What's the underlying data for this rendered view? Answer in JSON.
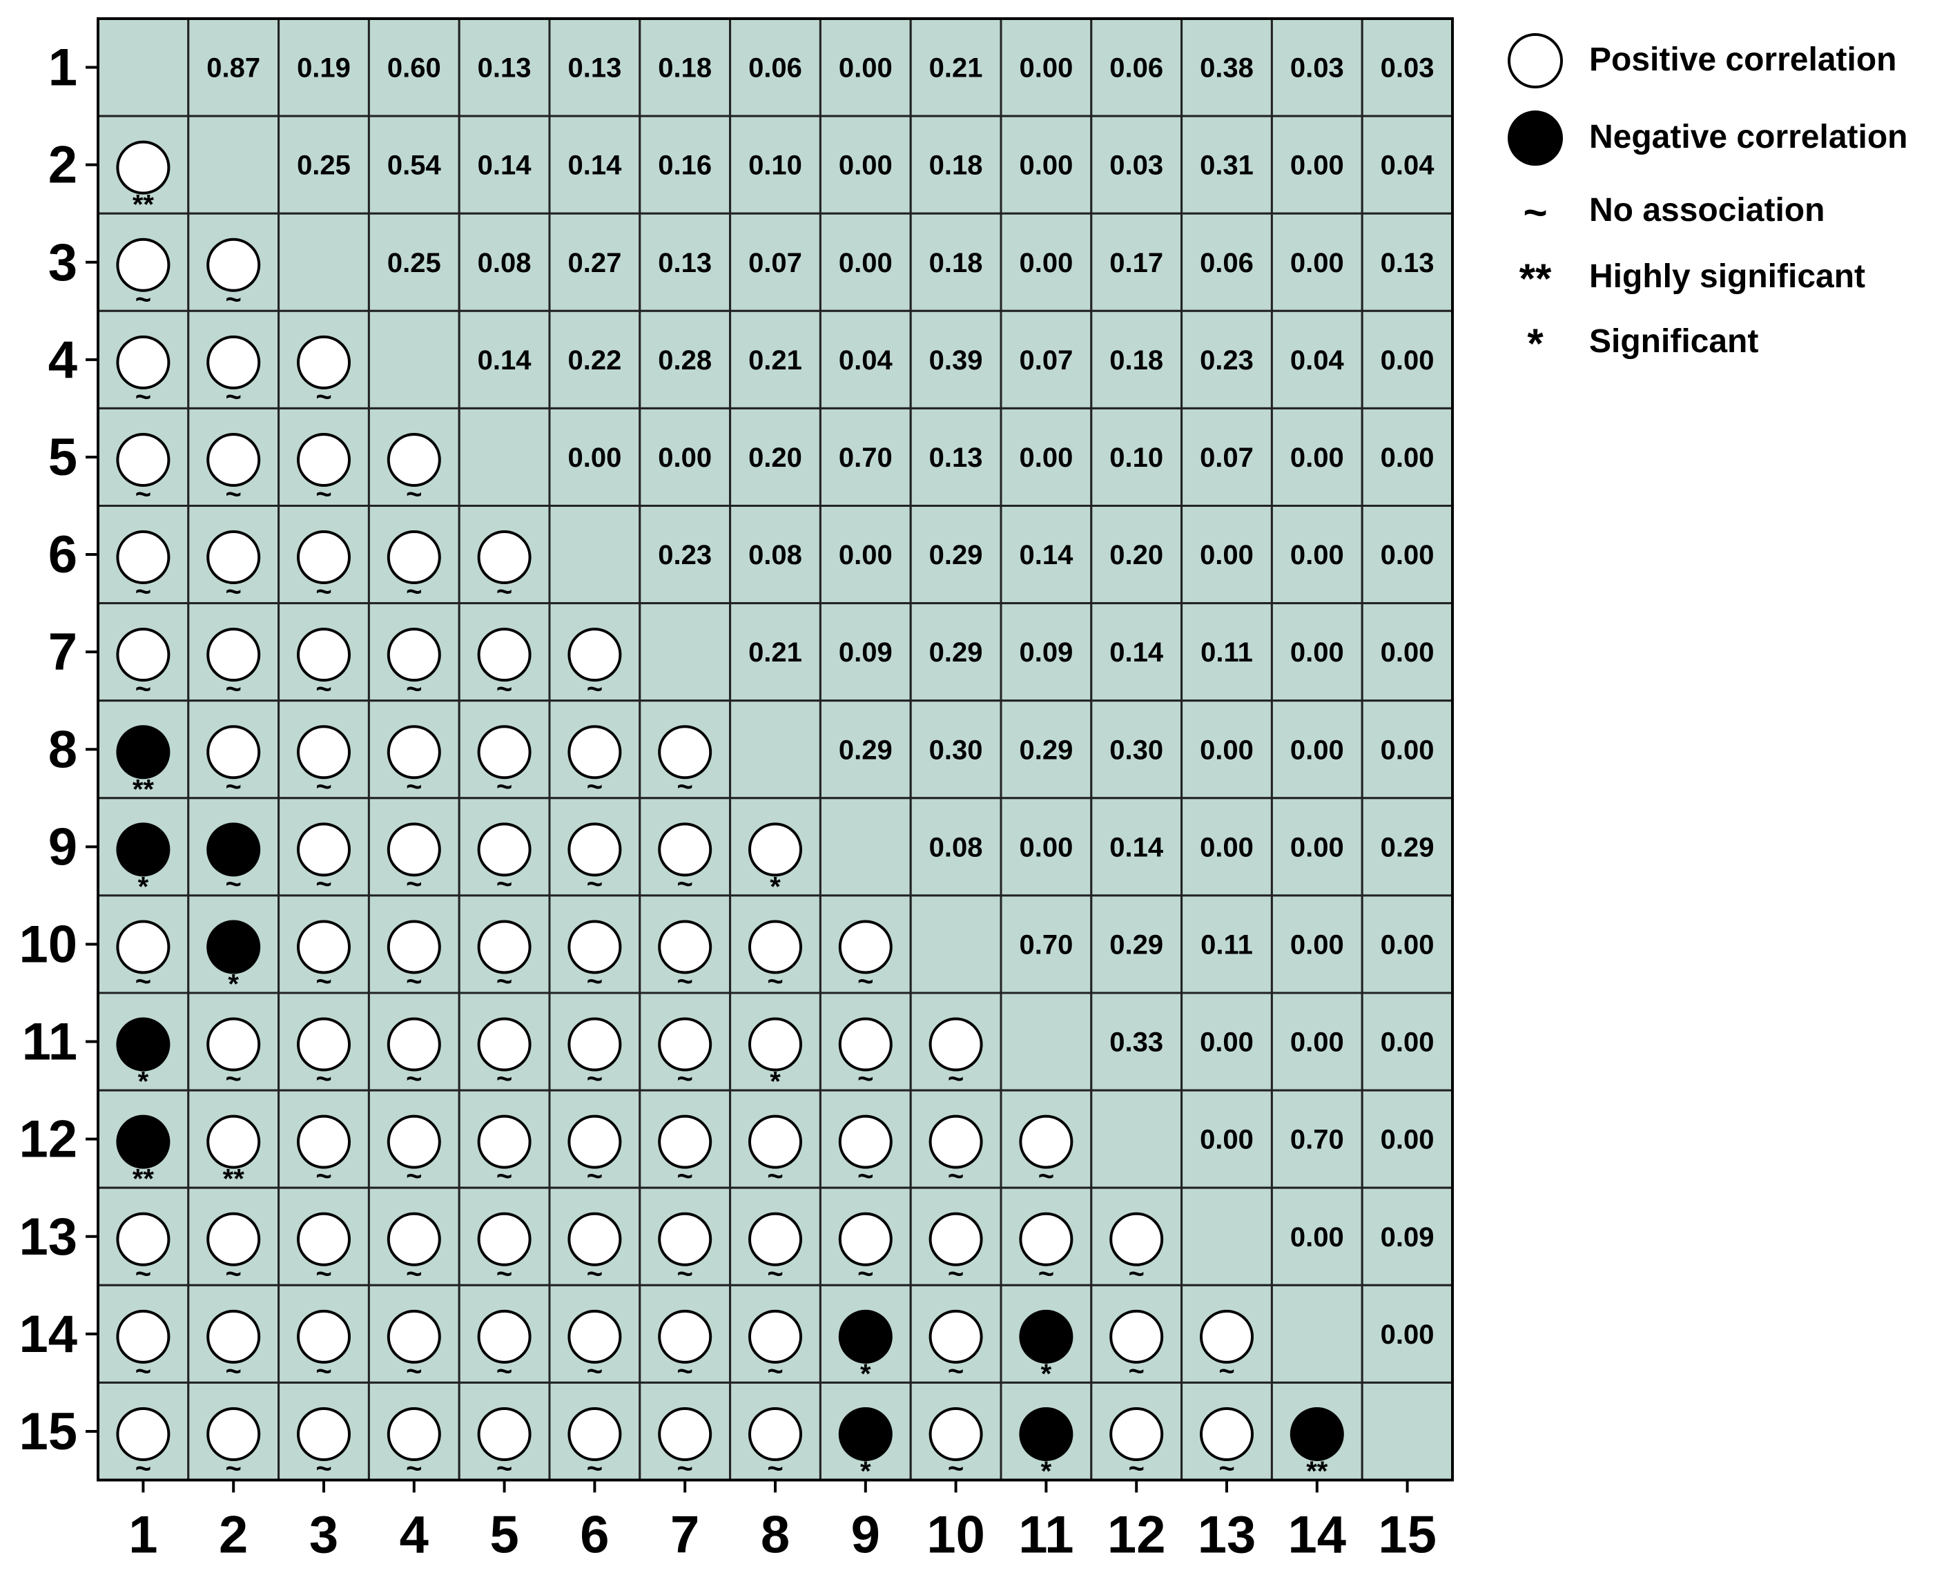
{
  "chart_data": {
    "type": "heatmap",
    "title": "",
    "xlabel": "",
    "ylabel": "",
    "row_labels": [
      "1",
      "2",
      "3",
      "4",
      "5",
      "6",
      "7",
      "8",
      "9",
      "10",
      "11",
      "12",
      "13",
      "14",
      "15"
    ],
    "col_labels": [
      "1",
      "2",
      "3",
      "4",
      "5",
      "6",
      "7",
      "8",
      "9",
      "10",
      "11",
      "12",
      "13",
      "14",
      "15"
    ],
    "upper_values": [
      [
        "0.87",
        "0.19",
        "0.60",
        "0.13",
        "0.13",
        "0.18",
        "0.06",
        "0.00",
        "0.21",
        "0.00",
        "0.06",
        "0.38",
        "0.03",
        "0.03"
      ],
      [
        "0.25",
        "0.54",
        "0.14",
        "0.14",
        "0.16",
        "0.10",
        "0.00",
        "0.18",
        "0.00",
        "0.03",
        "0.31",
        "0.00",
        "0.04"
      ],
      [
        "0.25",
        "0.08",
        "0.27",
        "0.13",
        "0.07",
        "0.00",
        "0.18",
        "0.00",
        "0.17",
        "0.06",
        "0.00",
        "0.13"
      ],
      [
        "0.14",
        "0.22",
        "0.28",
        "0.21",
        "0.04",
        "0.39",
        "0.07",
        "0.18",
        "0.23",
        "0.04",
        "0.00"
      ],
      [
        "0.00",
        "0.00",
        "0.20",
        "0.70",
        "0.13",
        "0.00",
        "0.10",
        "0.07",
        "0.00",
        "0.00"
      ],
      [
        "0.23",
        "0.08",
        "0.00",
        "0.29",
        "0.14",
        "0.20",
        "0.00",
        "0.00",
        "0.00"
      ],
      [
        "0.21",
        "0.09",
        "0.29",
        "0.09",
        "0.14",
        "0.11",
        "0.00",
        "0.00"
      ],
      [
        "0.29",
        "0.30",
        "0.29",
        "0.30",
        "0.00",
        "0.00",
        "0.00"
      ],
      [
        "0.08",
        "0.00",
        "0.14",
        "0.00",
        "0.00",
        "0.29"
      ],
      [
        "0.70",
        "0.29",
        "0.11",
        "0.00",
        "0.00"
      ],
      [
        "0.33",
        "0.00",
        "0.00",
        "0.00"
      ],
      [
        "0.00",
        "0.70",
        "0.00"
      ],
      [
        "0.00",
        "0.09"
      ],
      [
        "0.00"
      ],
      []
    ],
    "lower_symbols": [
      [],
      [
        {
          "sign": "positive",
          "mark": "**"
        }
      ],
      [
        {
          "sign": "positive",
          "mark": "~"
        },
        {
          "sign": "positive",
          "mark": "~"
        }
      ],
      [
        {
          "sign": "positive",
          "mark": "~"
        },
        {
          "sign": "positive",
          "mark": "~"
        },
        {
          "sign": "positive",
          "mark": "~"
        }
      ],
      [
        {
          "sign": "positive",
          "mark": "~"
        },
        {
          "sign": "positive",
          "mark": "~"
        },
        {
          "sign": "positive",
          "mark": "~"
        },
        {
          "sign": "positive",
          "mark": "~"
        }
      ],
      [
        {
          "sign": "positive",
          "mark": "~"
        },
        {
          "sign": "positive",
          "mark": "~"
        },
        {
          "sign": "positive",
          "mark": "~"
        },
        {
          "sign": "positive",
          "mark": "~"
        },
        {
          "sign": "positive",
          "mark": "~"
        }
      ],
      [
        {
          "sign": "positive",
          "mark": "~"
        },
        {
          "sign": "positive",
          "mark": "~"
        },
        {
          "sign": "positive",
          "mark": "~"
        },
        {
          "sign": "positive",
          "mark": "~"
        },
        {
          "sign": "positive",
          "mark": "~"
        },
        {
          "sign": "positive",
          "mark": "~"
        }
      ],
      [
        {
          "sign": "negative",
          "mark": "**"
        },
        {
          "sign": "positive",
          "mark": "~"
        },
        {
          "sign": "positive",
          "mark": "~"
        },
        {
          "sign": "positive",
          "mark": "~"
        },
        {
          "sign": "positive",
          "mark": "~"
        },
        {
          "sign": "positive",
          "mark": "~"
        },
        {
          "sign": "positive",
          "mark": "~"
        }
      ],
      [
        {
          "sign": "negative",
          "mark": "*"
        },
        {
          "sign": "negative",
          "mark": "~"
        },
        {
          "sign": "positive",
          "mark": "~"
        },
        {
          "sign": "positive",
          "mark": "~"
        },
        {
          "sign": "positive",
          "mark": "~"
        },
        {
          "sign": "positive",
          "mark": "~"
        },
        {
          "sign": "positive",
          "mark": "~"
        },
        {
          "sign": "positive",
          "mark": "*"
        }
      ],
      [
        {
          "sign": "positive",
          "mark": "~"
        },
        {
          "sign": "negative",
          "mark": "*"
        },
        {
          "sign": "positive",
          "mark": "~"
        },
        {
          "sign": "positive",
          "mark": "~"
        },
        {
          "sign": "positive",
          "mark": "~"
        },
        {
          "sign": "positive",
          "mark": "~"
        },
        {
          "sign": "positive",
          "mark": "~"
        },
        {
          "sign": "positive",
          "mark": "~"
        },
        {
          "sign": "positive",
          "mark": "~"
        }
      ],
      [
        {
          "sign": "negative",
          "mark": "*"
        },
        {
          "sign": "positive",
          "mark": "~"
        },
        {
          "sign": "positive",
          "mark": "~"
        },
        {
          "sign": "positive",
          "mark": "~"
        },
        {
          "sign": "positive",
          "mark": "~"
        },
        {
          "sign": "positive",
          "mark": "~"
        },
        {
          "sign": "positive",
          "mark": "~"
        },
        {
          "sign": "positive",
          "mark": "*"
        },
        {
          "sign": "positive",
          "mark": "~"
        },
        {
          "sign": "positive",
          "mark": "~"
        }
      ],
      [
        {
          "sign": "negative",
          "mark": "**"
        },
        {
          "sign": "positive",
          "mark": "**"
        },
        {
          "sign": "positive",
          "mark": "~"
        },
        {
          "sign": "positive",
          "mark": "~"
        },
        {
          "sign": "positive",
          "mark": "~"
        },
        {
          "sign": "positive",
          "mark": "~"
        },
        {
          "sign": "positive",
          "mark": "~"
        },
        {
          "sign": "positive",
          "mark": "~"
        },
        {
          "sign": "positive",
          "mark": "~"
        },
        {
          "sign": "positive",
          "mark": "~"
        },
        {
          "sign": "positive",
          "mark": "~"
        }
      ],
      [
        {
          "sign": "positive",
          "mark": "~"
        },
        {
          "sign": "positive",
          "mark": "~"
        },
        {
          "sign": "positive",
          "mark": "~"
        },
        {
          "sign": "positive",
          "mark": "~"
        },
        {
          "sign": "positive",
          "mark": "~"
        },
        {
          "sign": "positive",
          "mark": "~"
        },
        {
          "sign": "positive",
          "mark": "~"
        },
        {
          "sign": "positive",
          "mark": "~"
        },
        {
          "sign": "positive",
          "mark": "~"
        },
        {
          "sign": "positive",
          "mark": "~"
        },
        {
          "sign": "positive",
          "mark": "~"
        },
        {
          "sign": "positive",
          "mark": "~"
        }
      ],
      [
        {
          "sign": "positive",
          "mark": "~"
        },
        {
          "sign": "positive",
          "mark": "~"
        },
        {
          "sign": "positive",
          "mark": "~"
        },
        {
          "sign": "positive",
          "mark": "~"
        },
        {
          "sign": "positive",
          "mark": "~"
        },
        {
          "sign": "positive",
          "mark": "~"
        },
        {
          "sign": "positive",
          "mark": "~"
        },
        {
          "sign": "positive",
          "mark": "~"
        },
        {
          "sign": "negative",
          "mark": "*"
        },
        {
          "sign": "positive",
          "mark": "~"
        },
        {
          "sign": "negative",
          "mark": "*"
        },
        {
          "sign": "positive",
          "mark": "~"
        },
        {
          "sign": "positive",
          "mark": "~"
        }
      ],
      [
        {
          "sign": "positive",
          "mark": "~"
        },
        {
          "sign": "positive",
          "mark": "~"
        },
        {
          "sign": "positive",
          "mark": "~"
        },
        {
          "sign": "positive",
          "mark": "~"
        },
        {
          "sign": "positive",
          "mark": "~"
        },
        {
          "sign": "positive",
          "mark": "~"
        },
        {
          "sign": "positive",
          "mark": "~"
        },
        {
          "sign": "positive",
          "mark": "~"
        },
        {
          "sign": "negative",
          "mark": "*"
        },
        {
          "sign": "positive",
          "mark": "~"
        },
        {
          "sign": "negative",
          "mark": "*"
        },
        {
          "sign": "positive",
          "mark": "~"
        },
        {
          "sign": "positive",
          "mark": "~"
        },
        {
          "sign": "negative",
          "mark": "**"
        }
      ]
    ],
    "legend": {
      "placement": "top-right",
      "entries": [
        {
          "symbol": "open-circle",
          "label": "Positive correlation"
        },
        {
          "symbol": "filled-circle",
          "label": "Negative correlation"
        },
        {
          "symbol": "~",
          "label": "No association"
        },
        {
          "symbol": "**",
          "label": "Highly significant"
        },
        {
          "symbol": "*",
          "label": "Significant"
        }
      ]
    },
    "colors": {
      "cell_background": "#bfd8d2",
      "positive_fill": "#ffffff",
      "negative_fill": "#000000"
    },
    "grid": true
  }
}
